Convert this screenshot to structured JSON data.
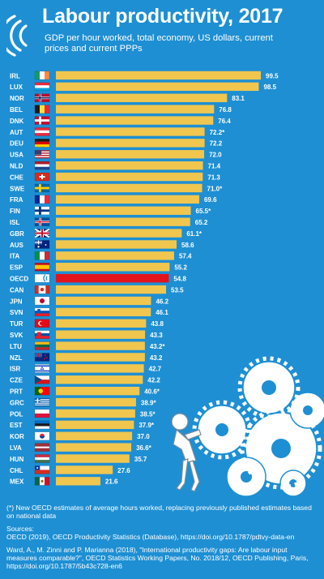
{
  "title": "Labour productivity, 2017",
  "subtitle": "GDP per hour worked, total economy, US dollars, current prices and current PPPs",
  "footer": {
    "note": "(*) New OECD estimates of average hours worked, replacing previously published estimates based on national data",
    "sources_label": "Sources:",
    "source1": "OECD (2019), OECD Productivity Statistics (Database), https://doi.org/10.1787/pdtvy-data-en",
    "source2": "Ward, A., M. Zinni and P. Marianna (2018), \"International productivity gaps: Are labour input measures comparable?\", OECD Statistics Working Papers, No. 2018/12, OECD Publishing, Paris, https://doi.org/10.1787/5b43c728-en6"
  },
  "colors": {
    "background": "#1e8fd3",
    "bar": "#f0c64e",
    "highlight_bar": "#e3141c",
    "text": "#ffffff"
  },
  "illustration": "figure-pushing-gears",
  "chart_data": {
    "type": "bar",
    "orientation": "horizontal",
    "title": "Labour productivity, 2017",
    "xlim": [
      0,
      100
    ],
    "grid": false,
    "highlight": "OECD",
    "categories": [
      "IRL",
      "LUX",
      "NOR",
      "BEL",
      "DNK",
      "AUT",
      "DEU",
      "USA",
      "NLD",
      "CHE",
      "SWE",
      "FRA",
      "FIN",
      "ISL",
      "GBR",
      "AUS",
      "ITA",
      "ESP",
      "OECD",
      "CAN",
      "JPN",
      "SVN",
      "TUR",
      "SVK",
      "LTU",
      "NZL",
      "ISR",
      "CZE",
      "PRT",
      "GRC",
      "POL",
      "EST",
      "KOR",
      "LVA",
      "HUN",
      "CHL",
      "MEX"
    ],
    "values": [
      99.5,
      98.5,
      83.1,
      76.8,
      76.4,
      72.2,
      72.2,
      72.0,
      71.4,
      71.3,
      71.0,
      69.6,
      65.5,
      65.2,
      61.1,
      58.6,
      57.4,
      55.2,
      54.8,
      53.5,
      46.2,
      46.1,
      43.8,
      43.3,
      43.2,
      43.2,
      42.7,
      42.2,
      40.6,
      38.9,
      38.5,
      37.9,
      37.0,
      36.6,
      35.7,
      27.6,
      21.6
    ],
    "labels": [
      "99.5",
      "98.5",
      "83.1",
      "76.8",
      "76.4",
      "72.2*",
      "72.2",
      "72.0",
      "71.4",
      "71.3",
      "71.0*",
      "69.6",
      "65.5*",
      "65.2",
      "61.1*",
      "58.6",
      "57.4",
      "55.2",
      "54.8",
      "53.5",
      "46.2",
      "46.1",
      "43.8",
      "43.3",
      "43.2*",
      "43.2",
      "42.7",
      "42.2",
      "40.6*",
      "38.9*",
      "38.5*",
      "37.9*",
      "37.0",
      "36.6*",
      "35.7",
      "27.6",
      "21.6"
    ],
    "flags": [
      "ireland-flag-icon",
      "luxembourg-flag-icon",
      "norway-flag-icon",
      "belgium-flag-icon",
      "denmark-flag-icon",
      "austria-flag-icon",
      "germany-flag-icon",
      "usa-flag-icon",
      "netherlands-flag-icon",
      "switzerland-flag-icon",
      "sweden-flag-icon",
      "france-flag-icon",
      "finland-flag-icon",
      "iceland-flag-icon",
      "uk-flag-icon",
      "australia-flag-icon",
      "italy-flag-icon",
      "spain-flag-icon",
      "oecd-logo-icon",
      "canada-flag-icon",
      "japan-flag-icon",
      "slovenia-flag-icon",
      "turkey-flag-icon",
      "slovakia-flag-icon",
      "lithuania-flag-icon",
      "new-zealand-flag-icon",
      "israel-flag-icon",
      "czech-flag-icon",
      "portugal-flag-icon",
      "greece-flag-icon",
      "poland-flag-icon",
      "estonia-flag-icon",
      "korea-flag-icon",
      "latvia-flag-icon",
      "hungary-flag-icon",
      "chile-flag-icon",
      "mexico-flag-icon"
    ]
  }
}
